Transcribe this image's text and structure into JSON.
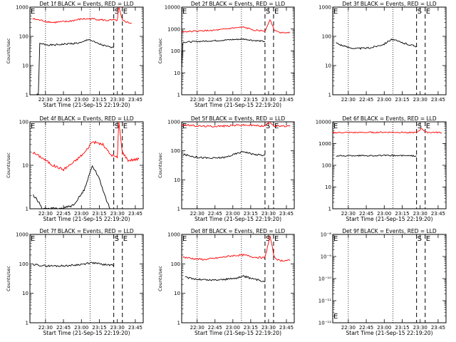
{
  "chart_data": [
    {
      "type": "line",
      "title": "Det 1f BLACK = Events, RED = LLD",
      "xlabel": "Start Time (21-Sep-15 22:19:20)",
      "ylabel": "Counts/sec",
      "y_scale": "log",
      "ylim": [
        1,
        1000
      ],
      "y_ticks": [
        "1",
        "10",
        "100",
        "1000"
      ],
      "x_ticks": [
        "22:30",
        "22:45",
        "23:00",
        "23:15",
        "23:30",
        "23:45"
      ],
      "events": {
        "start_label": "S",
        "end_label": "E",
        "left_marker": "E"
      },
      "series": [
        {
          "color": "#000000",
          "x_min": [
            22.35,
            22.46,
            22.72,
            23.07,
            23.35,
            23.43
          ],
          "y": [
            1,
            55,
            50,
            80,
            45,
            40
          ],
          "points": [
            [
              22.35,
              1
            ],
            [
              22.4,
              1
            ],
            [
              22.42,
              55
            ],
            [
              22.6,
              50
            ],
            [
              22.8,
              55
            ],
            [
              23.0,
              60
            ],
            [
              23.1,
              80
            ],
            [
              23.2,
              60
            ],
            [
              23.35,
              45
            ],
            [
              23.45,
              40
            ]
          ]
        },
        {
          "color": "#ff0000",
          "points": [
            [
              22.32,
              400
            ],
            [
              22.5,
              330
            ],
            [
              22.6,
              300
            ],
            [
              22.8,
              320
            ],
            [
              23.0,
              390
            ],
            [
              23.15,
              400
            ],
            [
              23.35,
              350
            ],
            [
              23.45,
              360
            ],
            [
              23.5,
              350
            ],
            [
              23.52,
              1000
            ],
            [
              23.57,
              350
            ],
            [
              23.65,
              300
            ],
            [
              23.7,
              280
            ]
          ]
        }
      ]
    },
    {
      "type": "line",
      "title": "Det 2f BLACK = Events, RED = LLD",
      "xlabel": "Start Time (21-Sep-15 22:19:20)",
      "ylabel": "Counts/sec",
      "y_scale": "log",
      "ylim": [
        1,
        10000
      ],
      "y_ticks": [
        "1",
        "10",
        "100",
        "1000",
        "10000"
      ],
      "x_ticks": [
        "22:30",
        "22:45",
        "23:00",
        "23:15",
        "23:30",
        "23:45"
      ],
      "events": {
        "start_label": "S",
        "end_label": "E",
        "left_marker": "E"
      },
      "series": [
        {
          "color": "#000000",
          "points": [
            [
              22.28,
              10
            ],
            [
              22.3,
              250
            ],
            [
              22.5,
              270
            ],
            [
              22.8,
              300
            ],
            [
              23.0,
              330
            ],
            [
              23.15,
              350
            ],
            [
              23.3,
              300
            ],
            [
              23.45,
              270
            ]
          ]
        },
        {
          "color": "#ff0000",
          "points": [
            [
              22.28,
              750
            ],
            [
              22.5,
              800
            ],
            [
              22.8,
              900
            ],
            [
              23.0,
              1100
            ],
            [
              23.15,
              1200
            ],
            [
              23.3,
              900
            ],
            [
              23.45,
              800
            ],
            [
              23.52,
              2800
            ],
            [
              23.58,
              900
            ],
            [
              23.65,
              700
            ],
            [
              23.8,
              700
            ]
          ]
        }
      ]
    },
    {
      "type": "line",
      "title": "Det 3f BLACK = Events, RED = LLD",
      "xlabel": "",
      "ylabel": "",
      "y_scale": "log",
      "ylim": [
        1,
        1000
      ],
      "y_ticks": [
        "1",
        "10",
        "100",
        "1000"
      ],
      "x_ticks": [
        "22:30",
        "22:45",
        "23:00",
        "23:15",
        "23:30",
        "23:45"
      ],
      "events": {
        "start_label": "S",
        "end_label": "E",
        "left_marker": "E"
      },
      "series": [
        {
          "color": "#000000",
          "points": [
            [
              22.33,
              60
            ],
            [
              22.45,
              45
            ],
            [
              22.6,
              38
            ],
            [
              22.8,
              40
            ],
            [
              23.0,
              55
            ],
            [
              23.1,
              80
            ],
            [
              23.25,
              60
            ],
            [
              23.45,
              45
            ]
          ]
        }
      ]
    },
    {
      "type": "line",
      "title": "Det 4f BLACK = Events, RED = LLD",
      "xlabel": "Start Time (21-Sep-15 22:19:20)",
      "ylabel": "Counts/sec",
      "y_scale": "log",
      "ylim": [
        1,
        100
      ],
      "y_ticks": [
        "1",
        "10",
        "100"
      ],
      "x_ticks": [
        "22:30",
        "22:45",
        "23:00",
        "23:15",
        "23:30",
        "23:45"
      ],
      "events": {
        "start_label": "S",
        "end_label": "E",
        "left_marker": "E"
      },
      "series": [
        {
          "color": "#000000",
          "points": [
            [
              22.33,
              2
            ],
            [
              22.4,
              1.5
            ],
            [
              22.45,
              1
            ],
            [
              22.7,
              1
            ],
            [
              22.9,
              1.2
            ],
            [
              23.05,
              3
            ],
            [
              23.15,
              10
            ],
            [
              23.25,
              5
            ],
            [
              23.35,
              1.5
            ],
            [
              23.4,
              1
            ]
          ]
        },
        {
          "color": "#ff0000",
          "points": [
            [
              22.32,
              20
            ],
            [
              22.45,
              15
            ],
            [
              22.6,
              10
            ],
            [
              22.75,
              8
            ],
            [
              22.9,
              12
            ],
            [
              23.05,
              20
            ],
            [
              23.15,
              35
            ],
            [
              23.3,
              30
            ],
            [
              23.4,
              18
            ],
            [
              23.5,
              15
            ],
            [
              23.52,
              100
            ],
            [
              23.57,
              20
            ],
            [
              23.65,
              13
            ],
            [
              23.8,
              14
            ]
          ]
        }
      ]
    },
    {
      "type": "line",
      "title": "Det 5f BLACK = Events, RED = LLD",
      "xlabel": "Start Time (21-Sep-15 22:19:20)",
      "ylabel": "Counts/sec",
      "y_scale": "log",
      "ylim": [
        1,
        1000
      ],
      "y_ticks": [
        "1",
        "10",
        "100",
        "1000"
      ],
      "x_ticks": [
        "22:30",
        "22:45",
        "23:00",
        "23:15",
        "23:30",
        "23:45"
      ],
      "events": {
        "start_label": "S",
        "end_label": "E",
        "left_marker": "E"
      },
      "series": [
        {
          "color": "#000000",
          "points": [
            [
              22.3,
              75
            ],
            [
              22.5,
              60
            ],
            [
              22.7,
              55
            ],
            [
              22.9,
              60
            ],
            [
              23.05,
              80
            ],
            [
              23.15,
              95
            ],
            [
              23.3,
              75
            ],
            [
              23.45,
              70
            ]
          ]
        },
        {
          "color": "#ff0000",
          "points": [
            [
              22.28,
              800
            ],
            [
              22.5,
              720
            ],
            [
              22.7,
              700
            ],
            [
              22.9,
              720
            ],
            [
              23.1,
              780
            ],
            [
              23.3,
              750
            ],
            [
              23.45,
              720
            ],
            [
              23.52,
              1000
            ],
            [
              23.58,
              720
            ],
            [
              23.8,
              700
            ]
          ]
        }
      ]
    },
    {
      "type": "line",
      "title": "Det 6f BLACK = Events, RED = LLD",
      "xlabel": "Start Time (21-Sep-15 22:19:20)",
      "ylabel": "",
      "y_scale": "log",
      "ylim": [
        1,
        10000
      ],
      "y_ticks": [
        "1",
        "10",
        "100",
        "1000",
        "10000"
      ],
      "x_ticks": [
        "22:30",
        "22:45",
        "23:00",
        "23:15",
        "23:30",
        "23:45"
      ],
      "events": {
        "start_label": "S",
        "end_label": "E",
        "left_marker": "E"
      },
      "series": [
        {
          "color": "#000000",
          "points": [
            [
              22.33,
              270
            ],
            [
              22.6,
              280
            ],
            [
              22.9,
              280
            ],
            [
              23.2,
              280
            ],
            [
              23.45,
              270
            ]
          ]
        },
        {
          "color": "#ff0000",
          "points": [
            [
              22.28,
              3200
            ],
            [
              22.6,
              3200
            ],
            [
              22.9,
              3300
            ],
            [
              23.2,
              3300
            ],
            [
              23.45,
              3200
            ],
            [
              23.52,
              5000
            ],
            [
              23.58,
              3300
            ],
            [
              23.8,
              3200
            ]
          ]
        }
      ]
    },
    {
      "type": "line",
      "title": "Det 7f BLACK = Events, RED = LLD",
      "xlabel": "Start Time (21-Sep-15 22:19:20)",
      "ylabel": "Counts/sec",
      "y_scale": "log",
      "ylim": [
        1,
        1000
      ],
      "y_ticks": [
        "1",
        "10",
        "100",
        "1000"
      ],
      "x_ticks": [
        "22:30",
        "22:45",
        "23:00",
        "23:15",
        "23:30",
        "23:45"
      ],
      "events": {
        "start_label": "S",
        "end_label": "E",
        "left_marker": "E"
      },
      "series": [
        {
          "color": "#000000",
          "points": [
            [
              22.33,
              95
            ],
            [
              22.5,
              85
            ],
            [
              22.7,
              85
            ],
            [
              22.9,
              90
            ],
            [
              23.05,
              100
            ],
            [
              23.15,
              110
            ],
            [
              23.3,
              95
            ],
            [
              23.45,
              90
            ]
          ]
        }
      ]
    },
    {
      "type": "line",
      "title": "Det 8f BLACK = Events, RED = LLD",
      "xlabel": "Start Time (21-Sep-15 22:19:20)",
      "ylabel": "Counts/sec",
      "y_scale": "log",
      "ylim": [
        1,
        1000
      ],
      "y_ticks": [
        "1",
        "10",
        "100",
        "1000"
      ],
      "x_ticks": [
        "22:30",
        "22:45",
        "23:00",
        "23:15",
        "23:30",
        "23:45"
      ],
      "events": {
        "start_label": "S",
        "end_label": "E",
        "left_marker": "E"
      },
      "series": [
        {
          "color": "#000000",
          "points": [
            [
              22.33,
              35
            ],
            [
              22.5,
              30
            ],
            [
              22.7,
              28
            ],
            [
              22.9,
              30
            ],
            [
              23.05,
              33
            ],
            [
              23.15,
              38
            ],
            [
              23.3,
              30
            ],
            [
              23.45,
              25
            ]
          ]
        },
        {
          "color": "#ff0000",
          "points": [
            [
              22.3,
              170
            ],
            [
              22.45,
              150
            ],
            [
              22.6,
              140
            ],
            [
              22.8,
              160
            ],
            [
              23.0,
              190
            ],
            [
              23.15,
              200
            ],
            [
              23.3,
              170
            ],
            [
              23.45,
              160
            ],
            [
              23.52,
              900
            ],
            [
              23.58,
              170
            ],
            [
              23.65,
              130
            ],
            [
              23.8,
              130
            ]
          ]
        }
      ]
    },
    {
      "type": "line",
      "title": "Det 9f BLACK = Events, RED = LLD",
      "xlabel": "Start Time (21-Sep-15 22:19:20)",
      "ylabel": "",
      "y_scale": "log",
      "ylim": [
        1e-12,
        1e-08
      ],
      "y_ticks": [
        "10⁻¹²",
        "10⁻¹¹",
        "10⁻¹⁰",
        "10⁻⁹",
        "10⁻⁸"
      ],
      "x_ticks": [
        "22:30",
        "22:45",
        "23:00",
        "23:15",
        "23:30",
        "23:45"
      ],
      "events": {
        "start_label": "S",
        "end_label": "E",
        "left_marker": "E"
      },
      "series": []
    }
  ]
}
